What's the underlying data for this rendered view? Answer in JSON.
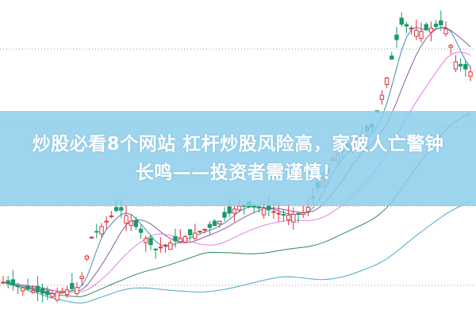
{
  "article": {
    "title_line1": "炒股必看8个网站 杠杆炒股风险高，家破人亡警钟",
    "title_line2": "长鸣——投资者需谨慎！"
  },
  "colors": {
    "banner": "#8ccdeb",
    "up_candle": "#e0303a",
    "down_candle": "#1a9a6a",
    "ma_short": "#3a8fb0",
    "ma_mid": "#e080e0",
    "ma_long": "#2a8a5a",
    "ma_longest": "#4aa8c8"
  }
}
